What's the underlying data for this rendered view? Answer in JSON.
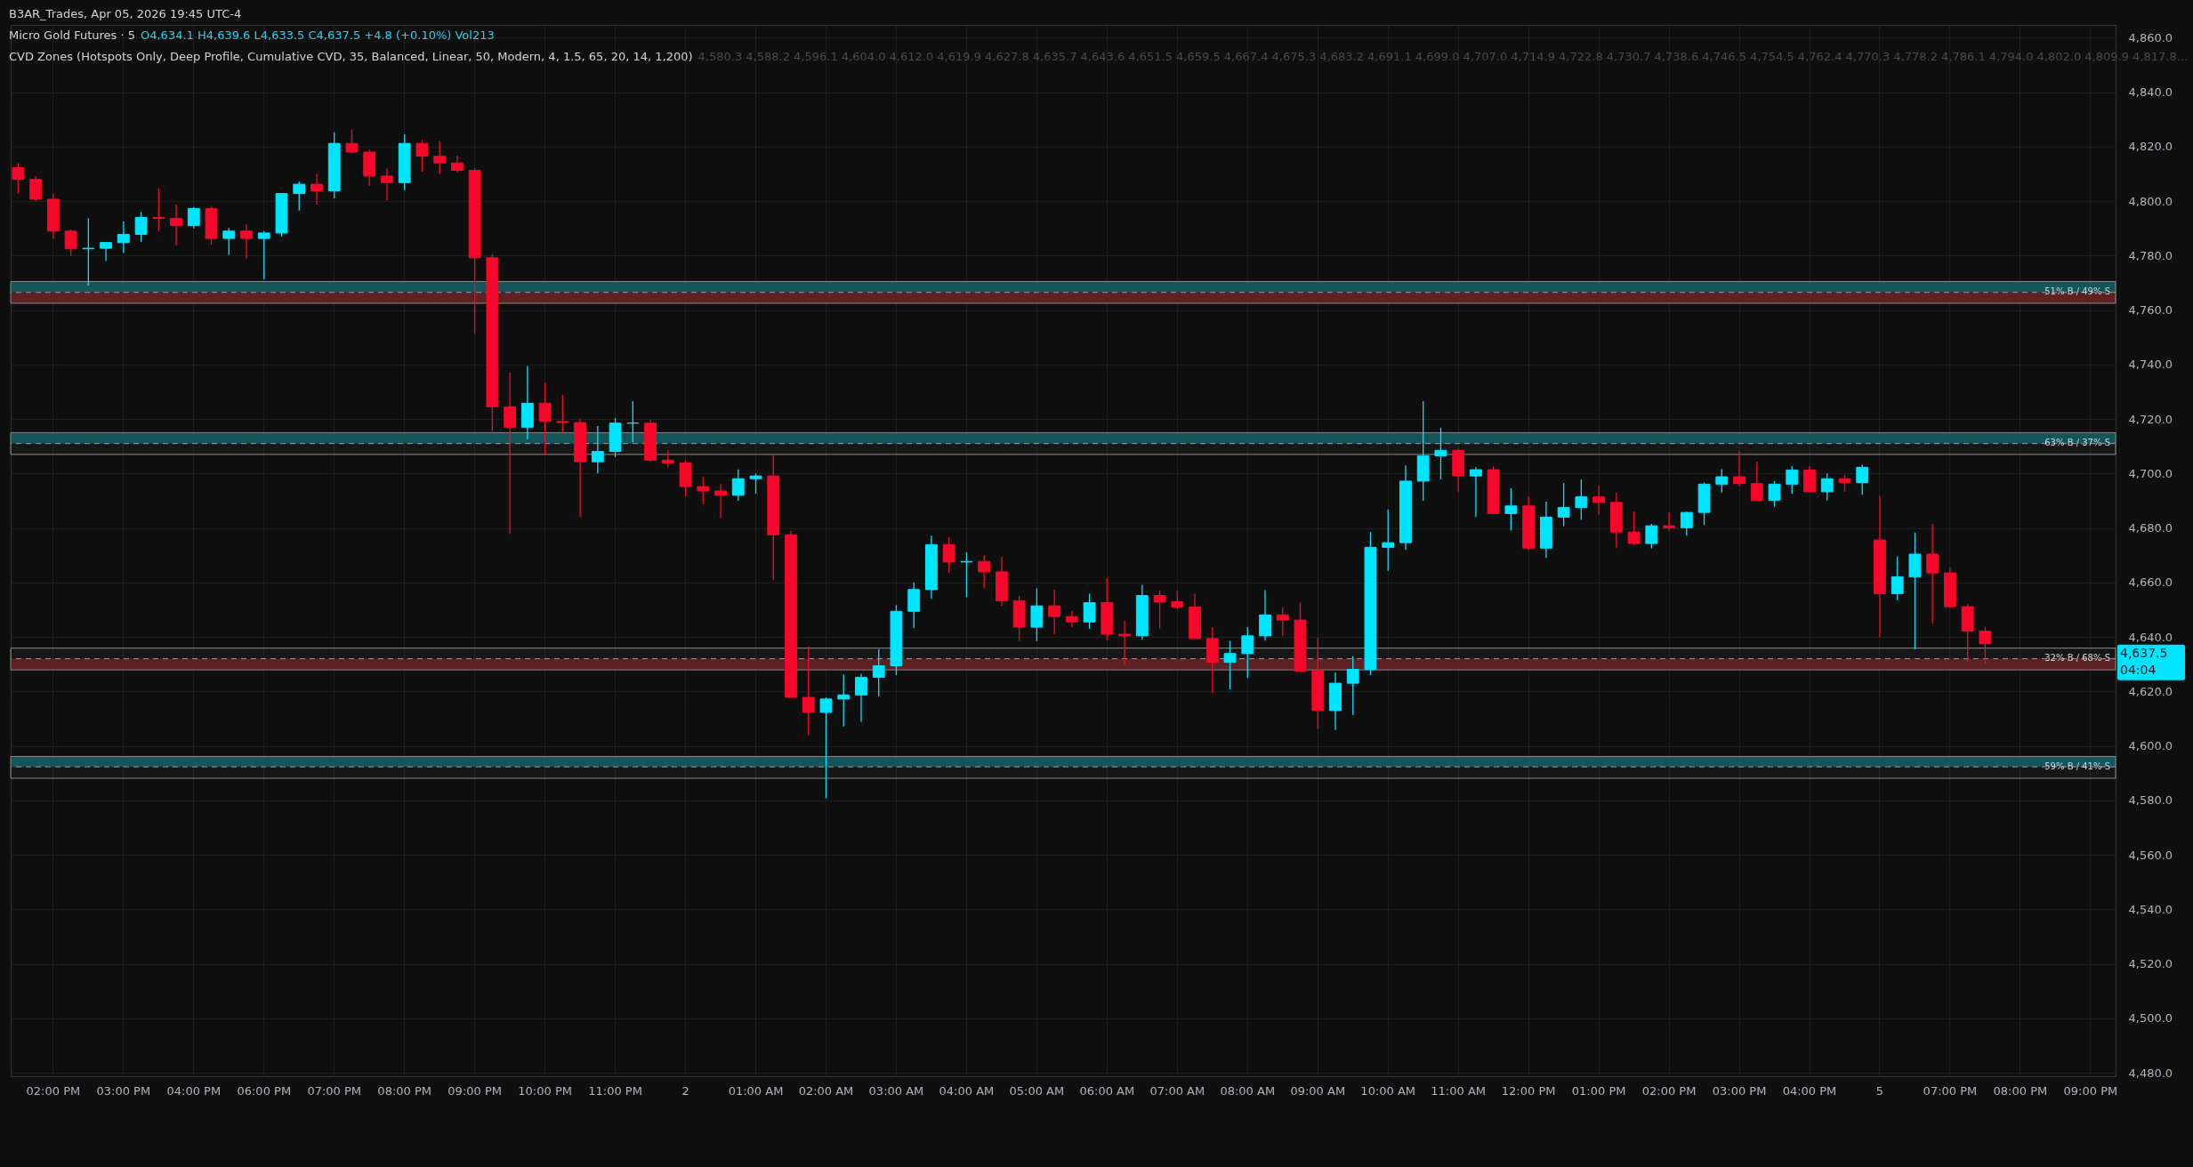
{
  "chart_data": {
    "type": "candlestick",
    "title": "Micro Gold Futures · 5",
    "subtitle": "O4,634.1 H4,639.6 L4,633.5 C4,637.5 +4.8 (+0.10%) Vol213",
    "annotations": [
      "B3AR_Trades, Apr 05, 2026 19:45 UTC-4",
      "CVD Zones (Hotspots Only, Deep Profile, Cumulative CVD, 35, Balanced, Linear, 50, Modern, 4, 1.5, 65, 20, 14, 1,200)",
      "4,580.3 4,588.2 4,596.1 4,604.0 4,612.0 4,619.9 4,627.8 4,635.7 4,643.6 4,651.5 4,659.5 4,667.4 4,675.3 4,683.2 4,691.1 4,699.0 4,707.0 4,714.9 4,722.8 4,730.7 4,738.6 4,746.5 4,754.5 4,762.4 4,770.3 4,778.2 4,786.1 4,794.0 4,802.0 4,809.9 4,817.8...",
      "4,637.5",
      "04:04"
    ],
    "categories": [
      null,
      null,
      "02:00 PM",
      null,
      null,
      null,
      "03:00 PM",
      null,
      null,
      null,
      "04:00 PM",
      null,
      null,
      null,
      "06:00 PM",
      null,
      null,
      null,
      "07:00 PM",
      null,
      null,
      null,
      "08:00 PM",
      null,
      null,
      null,
      "09:00 PM",
      null,
      null,
      null,
      "10:00 PM",
      null,
      null,
      null,
      "11:00 PM",
      null,
      null,
      null,
      "2",
      null,
      null,
      null,
      "01:00 AM",
      null,
      null,
      null,
      "02:00 AM",
      null,
      null,
      null,
      "03:00 AM",
      null,
      null,
      null,
      "04:00 AM",
      null,
      null,
      null,
      "05:00 AM",
      null,
      null,
      null,
      "06:00 AM",
      null,
      null,
      null,
      "07:00 AM",
      null,
      null,
      null,
      "08:00 AM",
      null,
      null,
      null,
      "09:00 AM",
      null,
      null,
      null,
      "10:00 AM",
      null,
      null,
      null,
      "11:00 AM",
      null,
      null,
      null,
      "12:00 PM",
      null,
      null,
      null,
      "01:00 PM",
      null,
      null,
      null,
      "02:00 PM",
      null,
      null,
      null,
      "03:00 PM",
      null,
      null,
      null,
      "04:00 PM",
      null,
      null,
      null,
      "5",
      null,
      null,
      null,
      "07:00 PM",
      null,
      null,
      null,
      "08:00 PM",
      null,
      null,
      null,
      "09:00 PM",
      null
    ],
    "ohlc": [
      [
        4812.3,
        4814,
        4802.8,
        4808
      ],
      [
        4808,
        4809,
        4800,
        4800.7
      ],
      [
        4800.7,
        4802.8,
        4786.2,
        4789
      ],
      [
        4789,
        4789.5,
        4779.8,
        4782.5
      ],
      [
        4782.5,
        4793.7,
        4769,
        4782.7
      ],
      [
        4782.7,
        4785,
        4778,
        4784.8
      ],
      [
        4784.8,
        4792.5,
        4781,
        4787.8
      ],
      [
        4787.8,
        4796,
        4785,
        4794
      ],
      [
        4794,
        4804.8,
        4789,
        4793.7
      ],
      [
        4793.7,
        4798.7,
        4783.7,
        4791
      ],
      [
        4791,
        4797.8,
        4790,
        4797.3
      ],
      [
        4797.3,
        4798,
        4784,
        4786.3
      ],
      [
        4786.3,
        4790.2,
        4780.2,
        4789
      ],
      [
        4789,
        4791.5,
        4779,
        4786.3
      ],
      [
        4786.3,
        4789,
        4771.2,
        4788.3
      ],
      [
        4788.3,
        4802.8,
        4787,
        4802.8
      ],
      [
        4802.8,
        4807.2,
        4796.5,
        4806.2
      ],
      [
        4806.2,
        4810,
        4798.7,
        4803.8
      ],
      [
        4803.8,
        4825.3,
        4801,
        4821.2
      ],
      [
        4821.2,
        4826.2,
        4817.5,
        4818
      ],
      [
        4818,
        4819,
        4805.7,
        4809.2
      ],
      [
        4809.2,
        4812,
        4800.3,
        4806.8
      ],
      [
        4806.8,
        4824.5,
        4804,
        4821.2
      ],
      [
        4821.2,
        4822.5,
        4810.8,
        4816.5
      ],
      [
        4816.5,
        4822,
        4810,
        4814
      ],
      [
        4814,
        4816.7,
        4810.5,
        4811.3
      ],
      [
        4811.3,
        4812,
        4751.2,
        4779.2
      ],
      [
        4779.2,
        4780.5,
        4715.3,
        4724.5
      ],
      [
        4724.5,
        4737,
        4677.8,
        4717
      ],
      [
        4717,
        4739.5,
        4712.5,
        4725.8
      ],
      [
        4725.8,
        4733.3,
        4706.6,
        4719.1
      ],
      [
        4719.1,
        4728.8,
        4715,
        4718.7
      ],
      [
        4718.7,
        4720,
        4684,
        4704.3
      ],
      [
        4704.3,
        4717.4,
        4700,
        4708.1
      ],
      [
        4708.1,
        4720.4,
        4706,
        4718.5
      ],
      [
        4718.5,
        4726.6,
        4711.5,
        4718.5
      ],
      [
        4718.5,
        4719.7,
        4704.3,
        4704.9
      ],
      [
        4704.9,
        4708.5,
        4702.3,
        4703.9
      ],
      [
        4703.9,
        4705,
        4691.6,
        4695.2
      ],
      [
        4695.2,
        4698.7,
        4688.8,
        4693.6
      ],
      [
        4693.6,
        4696.1,
        4683.6,
        4692
      ],
      [
        4692,
        4701.5,
        4690,
        4698.1
      ],
      [
        4698.1,
        4700,
        4692.6,
        4699.1
      ],
      [
        4699.1,
        4707.1,
        4661,
        4677.5
      ],
      [
        4677.5,
        4679,
        4617.8,
        4617.8
      ],
      [
        4617.8,
        4636.5,
        4603.9,
        4612.3
      ],
      [
        4612.3,
        4617.8,
        4580.8,
        4617.2
      ],
      [
        4617.2,
        4626.2,
        4607.1,
        4618.7
      ],
      [
        4618.7,
        4626.5,
        4608.8,
        4625.2
      ],
      [
        4625.2,
        4635.5,
        4618.2,
        4629.4
      ],
      [
        4629.4,
        4651.7,
        4626,
        4649.4
      ],
      [
        4649.4,
        4660,
        4643.2,
        4657.4
      ],
      [
        4657.4,
        4677.2,
        4654,
        4673.9
      ],
      [
        4673.9,
        4676.5,
        4663.6,
        4667.5
      ],
      [
        4667.5,
        4671.1,
        4654.6,
        4667.7
      ],
      [
        4667.7,
        4670,
        4657.8,
        4663.9
      ],
      [
        4663.9,
        4669.4,
        4651.4,
        4653.3
      ],
      [
        4653.3,
        4655,
        4638.5,
        4643.6
      ],
      [
        4643.6,
        4657.8,
        4638.5,
        4651.4
      ],
      [
        4651.4,
        4657.4,
        4641,
        4647.5
      ],
      [
        4647.5,
        4649.5,
        4643.6,
        4645.5
      ],
      [
        4645.5,
        4655.9,
        4643,
        4652.6
      ],
      [
        4652.6,
        4661.7,
        4638.8,
        4641
      ],
      [
        4641,
        4646,
        4629.8,
        4640.4
      ],
      [
        4640.4,
        4659.1,
        4639,
        4655.2
      ],
      [
        4655.2,
        4657,
        4643.2,
        4652.9
      ],
      [
        4652.9,
        4656.9,
        4650,
        4651
      ],
      [
        4651,
        4655.9,
        4639.4,
        4639.4
      ],
      [
        4639.4,
        4643.6,
        4619.4,
        4630.7
      ],
      [
        4630.7,
        4638.5,
        4620.8,
        4633.9
      ],
      [
        4633.9,
        4643.6,
        4624.9,
        4640.4
      ],
      [
        4640.4,
        4657.2,
        4638.6,
        4648.1
      ],
      [
        4648.1,
        4651,
        4640.4,
        4646.2
      ],
      [
        4646.2,
        4652.6,
        4626.8,
        4627.5
      ],
      [
        4627.5,
        4639.7,
        4606.2,
        4613
      ],
      [
        4613,
        4627,
        4605.8,
        4623
      ],
      [
        4623,
        4632.9,
        4611.4,
        4628.1
      ],
      [
        4628.1,
        4678.5,
        4626,
        4672.9
      ],
      [
        4672.9,
        4686.8,
        4664.3,
        4674.6
      ],
      [
        4674.6,
        4703,
        4672,
        4697.2
      ],
      [
        4697.2,
        4726.6,
        4690,
        4706.5
      ],
      [
        4706.5,
        4716.8,
        4697.8,
        4708.5
      ],
      [
        4708.5,
        4709,
        4693.3,
        4699.1
      ],
      [
        4699.1,
        4702.3,
        4684,
        4701.4
      ],
      [
        4701.4,
        4702.6,
        4685.3,
        4685.3
      ],
      [
        4685.3,
        4694.6,
        4679.1,
        4688.1
      ],
      [
        4688.1,
        4691.6,
        4672,
        4672.6
      ],
      [
        4672.6,
        4689.7,
        4669,
        4684
      ],
      [
        4684,
        4696.5,
        4680.6,
        4687.5
      ],
      [
        4687.5,
        4697.8,
        4683,
        4691.4
      ],
      [
        4691.4,
        4695.6,
        4685,
        4689.4
      ],
      [
        4689.4,
        4693,
        4672.8,
        4678.5
      ],
      [
        4678.5,
        4686,
        4673.6,
        4674.3
      ],
      [
        4674.3,
        4681.5,
        4672.5,
        4680.8
      ],
      [
        4680.8,
        4685.7,
        4679,
        4680.1
      ],
      [
        4680.1,
        4686,
        4677.2,
        4685.7
      ],
      [
        4685.7,
        4696.7,
        4681.1,
        4696.1
      ],
      [
        4696.1,
        4701.6,
        4693,
        4698.8
      ],
      [
        4698.8,
        4708.2,
        4695.2,
        4696.3
      ],
      [
        4696.3,
        4704.4,
        4690,
        4690.2
      ],
      [
        4690.2,
        4697.2,
        4687.8,
        4696.1
      ],
      [
        4696.1,
        4702.7,
        4692.6,
        4701.3
      ],
      [
        4701.3,
        4702.7,
        4693,
        4693.3
      ],
      [
        4693.3,
        4700,
        4690.1,
        4698.1
      ],
      [
        4698.1,
        4699.5,
        4693.3,
        4696.7
      ],
      [
        4696.7,
        4703.3,
        4692.2,
        4702.3
      ],
      [
        4675.6,
        4691.9,
        4639.9,
        4655.9
      ],
      [
        4655.9,
        4669.5,
        4653.5,
        4662.1
      ],
      [
        4662.1,
        4678.3,
        4635.4,
        4670.4
      ],
      [
        4670.4,
        4681.5,
        4644.8,
        4663.5
      ],
      [
        4663.5,
        4665.3,
        4650.7,
        4651.1
      ],
      [
        4651.1,
        4652,
        4631,
        4642.1
      ],
      [
        4642.1,
        4643.7,
        4630.3,
        4637.5
      ],
      null,
      null,
      null,
      null,
      null,
      null,
      null
    ],
    "colors": [
      "#f7082a",
      "#f7082a",
      "#f7082a",
      "#f7082a",
      "#00e5ff",
      "#00e5ff",
      "#00e5ff",
      "#00e5ff",
      "#f7082a",
      "#f7082a",
      "#00e5ff",
      "#f7082a",
      "#00e5ff",
      "#f7082a",
      "#00e5ff",
      "#00e5ff",
      "#00e5ff",
      "#f7082a",
      "#00e5ff",
      "#f7082a",
      "#f7082a",
      "#f7082a",
      "#00e5ff",
      "#f7082a",
      "#f7082a",
      "#f7082a",
      "#f7082a",
      "#f7082a",
      "#f7082a",
      "#00e5ff",
      "#f7082a",
      "#f7082a",
      "#f7082a",
      "#00e5ff",
      "#00e5ff",
      "#00e5ff",
      "#f7082a",
      "#f7082a",
      "#f7082a",
      "#f7082a",
      "#f7082a",
      "#00e5ff",
      "#00e5ff",
      "#f7082a",
      "#f7082a",
      "#f7082a",
      "#00e5ff",
      "#00e5ff",
      "#00e5ff",
      "#00e5ff",
      "#00e5ff",
      "#00e5ff",
      "#00e5ff",
      "#f7082a",
      "#00e5ff",
      "#f7082a",
      "#f7082a",
      "#f7082a",
      "#00e5ff",
      "#f7082a",
      "#f7082a",
      "#00e5ff",
      "#f7082a",
      "#f7082a",
      "#00e5ff",
      "#f7082a",
      "#f7082a",
      "#f7082a",
      "#f7082a",
      "#00e5ff",
      "#00e5ff",
      "#00e5ff",
      "#f7082a",
      "#f7082a",
      "#f7082a",
      "#00e5ff",
      "#00e5ff",
      "#00e5ff",
      "#00e5ff",
      "#00e5ff",
      "#00e5ff",
      "#00e5ff",
      "#f7082a",
      "#00e5ff",
      "#f7082a",
      "#00e5ff",
      "#f7082a",
      "#00e5ff",
      "#00e5ff",
      "#00e5ff",
      "#f7082a",
      "#f7082a",
      "#f7082a",
      "#00e5ff",
      "#f7082a",
      "#00e5ff",
      "#00e5ff",
      "#00e5ff",
      "#f7082a",
      "#f7082a",
      "#00e5ff",
      "#00e5ff",
      "#f7082a",
      "#00e5ff",
      "#f7082a",
      "#00e5ff",
      "#f7082a",
      "#00e5ff",
      "#00e5ff",
      "#f7082a",
      "#f7082a",
      "#f7082a",
      "#f7082a",
      null,
      null,
      null,
      null,
      null,
      null,
      null
    ],
    "ylim": [
      4478.7,
      4864.7
    ],
    "yticks": [
      {
        "value": 4480,
        "label": "4,480.0"
      },
      {
        "value": 4500,
        "label": "4,500.0"
      },
      {
        "value": 4520,
        "label": "4,520.0"
      },
      {
        "value": 4540,
        "label": "4,540.0"
      },
      {
        "value": 4560,
        "label": "4,560.0"
      },
      {
        "value": 4580,
        "label": "4,580.0"
      },
      {
        "value": 4600,
        "label": "4,600.0"
      },
      {
        "value": 4620,
        "label": "4,620.0"
      },
      {
        "value": 4640,
        "label": "4,640.0"
      },
      {
        "value": 4660,
        "label": "4,660.0"
      },
      {
        "value": 4680,
        "label": "4,680.0"
      },
      {
        "value": 4700,
        "label": "4,700.0"
      },
      {
        "value": 4720,
        "label": "4,720.0"
      },
      {
        "value": 4740,
        "label": "4,740.0"
      },
      {
        "value": 4760,
        "label": "4,760.0"
      },
      {
        "value": 4780,
        "label": "4,780.0"
      },
      {
        "value": 4800,
        "label": "4,800.0"
      },
      {
        "value": 4820,
        "label": "4,820.0"
      },
      {
        "value": 4840,
        "label": "4,840.0"
      },
      {
        "value": 4860,
        "label": "4,860.0"
      }
    ],
    "grid": true,
    "bands": [
      {
        "axis": "y",
        "from": 4766.5,
        "to": 4770.5,
        "color": "#0a5961"
      },
      {
        "axis": "y",
        "from": 4762.5,
        "to": 4766.5,
        "color": "#641a1d"
      },
      {
        "axis": "y",
        "from": 4711,
        "to": 4715,
        "color": "#0a5961"
      },
      {
        "axis": "y",
        "from": 4627.9,
        "to": 4632,
        "color": "#641a1d"
      },
      {
        "axis": "y",
        "from": 4592.3,
        "to": 4596.1,
        "color": "#0a5961"
      },
      {
        "axis": "y",
        "from": 4762.5,
        "to": 4770.5,
        "label": "51% B / 49% S",
        "color": "#8a8a8a"
      },
      {
        "axis": "y",
        "from": 4707,
        "to": 4715,
        "label": "63% B / 37% S",
        "color": "#8a8a8a"
      },
      {
        "axis": "y",
        "from": 4627.9,
        "to": 4635.9,
        "label": "32% B / 68% S",
        "color": "#8a8a8a"
      },
      {
        "axis": "y",
        "from": 4588.1,
        "to": 4596.1,
        "label": "59% B / 41% S",
        "color": "#8a8a8a"
      }
    ],
    "ref_lines": [
      {
        "axis": "y",
        "value": 4766.5,
        "color": "#9a9a9a",
        "line_style": "dashed"
      },
      {
        "axis": "y",
        "value": 4711,
        "color": "#9a9a9a",
        "line_style": "dashed"
      },
      {
        "axis": "y",
        "value": 4632,
        "color": "#9a9a9a",
        "line_style": "dashed"
      },
      {
        "axis": "y",
        "value": 4592.3,
        "color": "#9a9a9a",
        "line_style": "dashed"
      }
    ]
  }
}
